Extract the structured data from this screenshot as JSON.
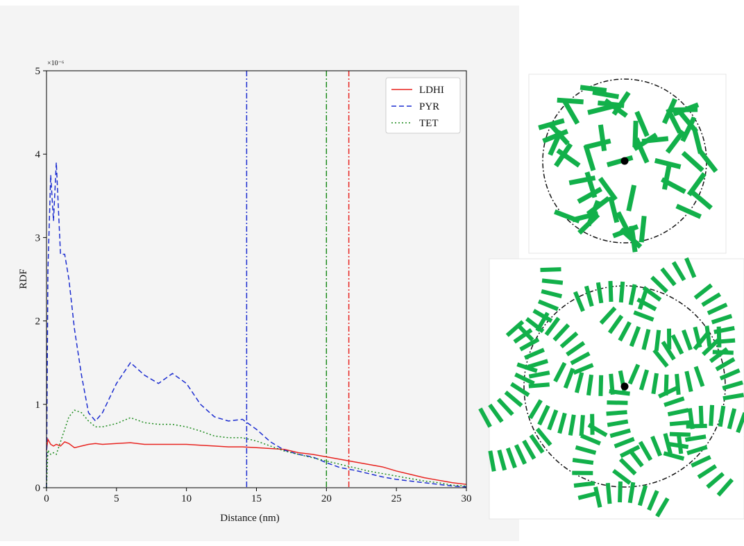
{
  "chart_data": {
    "type": "line",
    "x_label": "Distance (nm)",
    "y_label": "RDF",
    "y_offset_label": "×10⁻⁶",
    "x": [
      0,
      0.1,
      0.3,
      0.5,
      0.7,
      1,
      1.3,
      1.6,
      2,
      2.5,
      3,
      3.5,
      4,
      5,
      6,
      7,
      8,
      9,
      10,
      11,
      12,
      13,
      14,
      15,
      16,
      17,
      18,
      19,
      20,
      21,
      22,
      23,
      24,
      25,
      26,
      27,
      28,
      29,
      30
    ],
    "series": [
      {
        "name": "LDHI",
        "color": "#e8231f",
        "dash": "solid",
        "values": [
          0.45,
          0.58,
          0.52,
          0.5,
          0.52,
          0.5,
          0.55,
          0.53,
          0.48,
          0.5,
          0.52,
          0.53,
          0.52,
          0.53,
          0.54,
          0.52,
          0.52,
          0.52,
          0.52,
          0.51,
          0.5,
          0.49,
          0.49,
          0.48,
          0.47,
          0.46,
          0.42,
          0.4,
          0.37,
          0.34,
          0.31,
          0.28,
          0.25,
          0.2,
          0.16,
          0.12,
          0.09,
          0.06,
          0.04
        ]
      },
      {
        "name": "PYR",
        "color": "#1a2bd0",
        "dash": "dashed",
        "values": [
          0,
          2.6,
          3.75,
          3.2,
          3.9,
          2.8,
          2.8,
          2.5,
          1.9,
          1.35,
          0.9,
          0.8,
          0.9,
          1.25,
          1.5,
          1.35,
          1.25,
          1.37,
          1.25,
          1.0,
          0.85,
          0.8,
          0.82,
          0.7,
          0.55,
          0.45,
          0.4,
          0.37,
          0.3,
          0.24,
          0.21,
          0.17,
          0.13,
          0.1,
          0.08,
          0.06,
          0.04,
          0.02,
          0.01
        ]
      },
      {
        "name": "TET",
        "color": "#1a8a1a",
        "dash": "dotted",
        "values": [
          0,
          0.45,
          0.4,
          0.42,
          0.4,
          0.55,
          0.7,
          0.85,
          0.93,
          0.9,
          0.8,
          0.73,
          0.73,
          0.77,
          0.84,
          0.78,
          0.76,
          0.76,
          0.73,
          0.68,
          0.62,
          0.6,
          0.6,
          0.56,
          0.5,
          0.44,
          0.4,
          0.36,
          0.32,
          0.28,
          0.24,
          0.2,
          0.17,
          0.14,
          0.11,
          0.08,
          0.06,
          0.03,
          0.02
        ]
      }
    ],
    "vlines": [
      {
        "x": 14.3,
        "color": "#1a2bd0"
      },
      {
        "x": 20,
        "color": "#1a8a1a"
      },
      {
        "x": 21.6,
        "color": "#e8231f"
      }
    ],
    "xlim": [
      0,
      30
    ],
    "xticks": [
      0,
      5,
      10,
      15,
      20,
      25,
      30
    ],
    "ylim": [
      0,
      5
    ],
    "yticks": [
      0,
      1,
      2,
      3,
      4,
      5
    ],
    "legend": "upper right"
  }
}
